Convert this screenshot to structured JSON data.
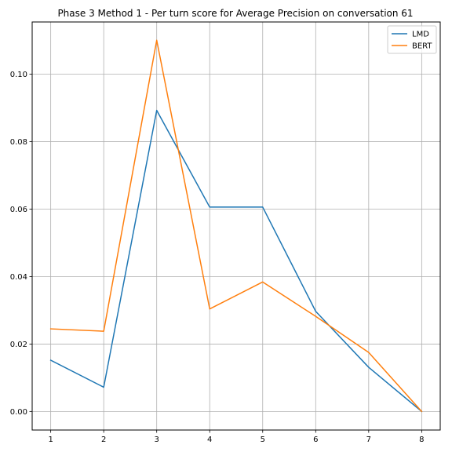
{
  "chart_data": {
    "type": "line",
    "title": "Phase 3 Method 1 - Per turn score for Average Precision on conversation 61",
    "xlabel": "",
    "ylabel": "",
    "x": [
      1,
      2,
      3,
      4,
      5,
      6,
      7,
      8
    ],
    "xticks": [
      "1",
      "2",
      "3",
      "4",
      "5",
      "6",
      "7",
      "8"
    ],
    "yticks": [
      "0.00",
      "0.02",
      "0.04",
      "0.06",
      "0.08",
      "0.10"
    ],
    "xlim": [
      0.65,
      8.35
    ],
    "ylim": [
      -0.0055,
      0.1155
    ],
    "grid": true,
    "legend_position": "top-right",
    "series": [
      {
        "name": "LMD",
        "color": "#1f77b4",
        "values": [
          0.0152,
          0.0072,
          0.0893,
          0.0606,
          0.0606,
          0.0297,
          0.0131,
          0.0
        ]
      },
      {
        "name": "BERT",
        "color": "#ff7f0e",
        "values": [
          0.0245,
          0.0238,
          0.1101,
          0.0304,
          0.0384,
          0.0282,
          0.0175,
          0.0
        ]
      }
    ]
  }
}
